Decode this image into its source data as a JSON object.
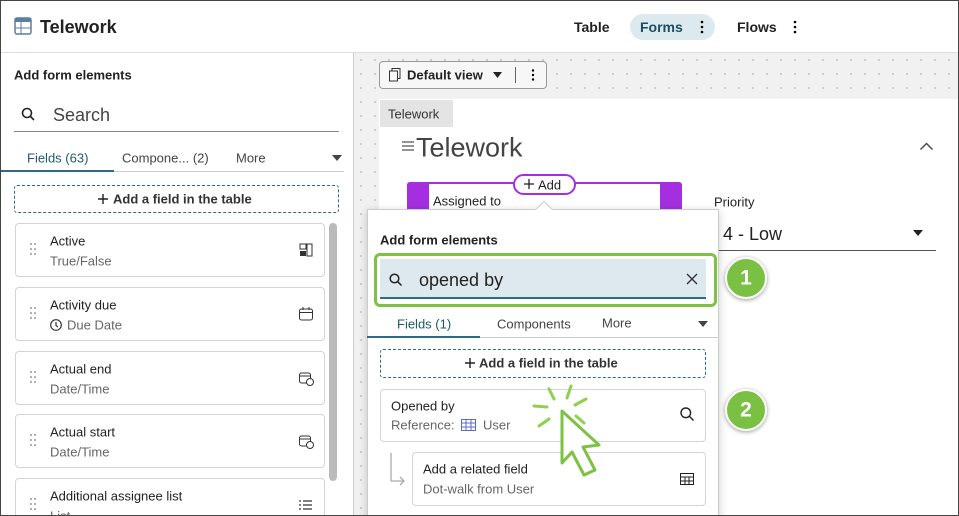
{
  "header": {
    "title": "Telework",
    "tabs": [
      "Table",
      "Forms",
      "Flows"
    ]
  },
  "sidebar": {
    "title": "Add form elements",
    "search_placeholder": "Search",
    "tabs": [
      "Fields (63)",
      "Compone... (2)",
      "More"
    ],
    "add_button": "Add a field in the table",
    "fields": [
      {
        "name": "Active",
        "type": "True/False"
      },
      {
        "name": "Activity due",
        "type": "Due Date"
      },
      {
        "name": "Actual end",
        "type": "Date/Time"
      },
      {
        "name": "Actual start",
        "type": "Date/Time"
      },
      {
        "name": "Additional assignee list",
        "type": "List"
      }
    ]
  },
  "canvas": {
    "view": "Default view",
    "form_tab": "Telework",
    "form_title": "Telework",
    "add": "Add",
    "fields": [
      {
        "label": "Assigned to"
      },
      {
        "label": "Priority",
        "value": "4 - Low"
      }
    ]
  },
  "popup": {
    "title": "Add form elements",
    "search_value": "opened by",
    "tabs": [
      "Fields (1)",
      "Components",
      "More"
    ],
    "add_button": "Add a field in the table",
    "result": {
      "name": "Opened by",
      "type_prefix": "Reference:",
      "type": "User"
    },
    "related": {
      "name": "Add a related field",
      "detail": "Dot-walk from User"
    }
  },
  "callouts": [
    "1",
    "2"
  ]
}
